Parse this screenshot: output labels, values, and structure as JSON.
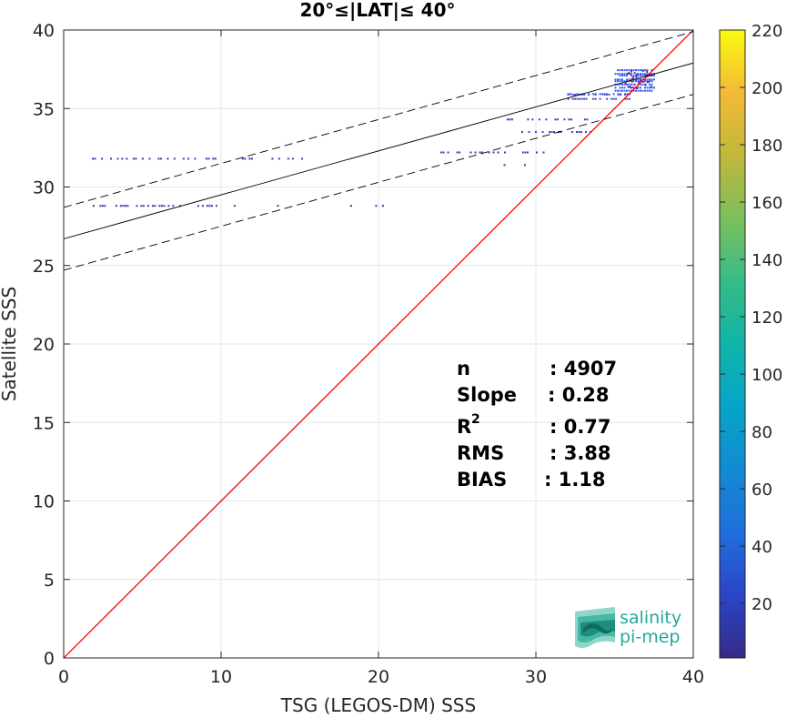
{
  "chart_data": {
    "type": "scatter",
    "title": "20°≤|LAT|≤ 40°",
    "xlabel": "TSG (LEGOS-DM) SSS",
    "ylabel": "Satellite SSS",
    "xlim": [
      0,
      40
    ],
    "ylim": [
      0,
      40
    ],
    "xticks": [
      "0",
      "10",
      "20",
      "30",
      "40"
    ],
    "yticks": [
      "0",
      "5",
      "10",
      "15",
      "20",
      "25",
      "30",
      "35",
      "40"
    ],
    "grid": true,
    "colorbar": {
      "range": [
        1,
        220
      ],
      "ticks": [
        "20",
        "40",
        "60",
        "80",
        "100",
        "120",
        "140",
        "160",
        "180",
        "200",
        "220"
      ],
      "colormap": "parula"
    },
    "lines": [
      {
        "kind": "one-to-one",
        "color": "#ff0000",
        "points": [
          [
            0,
            0
          ],
          [
            40,
            40
          ]
        ]
      },
      {
        "kind": "regression",
        "color": "#000000",
        "slope": 0.28,
        "intercept": 26.7
      },
      {
        "kind": "upper-bound",
        "color": "#000000",
        "dash": true,
        "slope": 0.28,
        "intercept": 28.7
      },
      {
        "kind": "lower-bound",
        "color": "#000000",
        "dash": true,
        "slope": 0.28,
        "intercept": 24.7
      }
    ],
    "point_groups": [
      {
        "y": 31.8,
        "x_from": 1.5,
        "x_to": 15.8,
        "density": "low"
      },
      {
        "y": 28.8,
        "x_from": 1.7,
        "x_to": 15.0,
        "density": "low"
      },
      {
        "y": 28.8,
        "x_from": 18.2,
        "x_to": 22.0,
        "density": "very-low"
      },
      {
        "y": 32.2,
        "x_from": 23.5,
        "x_to": 31.0,
        "density": "low"
      },
      {
        "y": 31.4,
        "x_from": 25.2,
        "x_to": 29.5,
        "density": "very-low"
      },
      {
        "y": 34.3,
        "x_from": 28.0,
        "x_to": 33.5,
        "density": "low"
      },
      {
        "y": 33.5,
        "x_from": 28.5,
        "x_to": 33.8,
        "density": "low"
      },
      {
        "y": 35.8,
        "x_from": 32.0,
        "x_to": 36.0,
        "density": "medium"
      },
      {
        "y": 36.8,
        "x_from": 35.0,
        "x_to": 37.5,
        "density": "high"
      }
    ],
    "stats": [
      {
        "label": "n",
        "value": ": 4907"
      },
      {
        "label": "Slope",
        "value": ": 0.28"
      },
      {
        "label": "R",
        "sup": "2",
        "value": ": 0.77"
      },
      {
        "label": "RMS",
        "value": ": 3.88"
      },
      {
        "label": "BIAS",
        "value": ": 1.18"
      }
    ]
  },
  "logo": {
    "line1": "salinity",
    "line2": "pi-mep",
    "color": "#23a99a"
  }
}
